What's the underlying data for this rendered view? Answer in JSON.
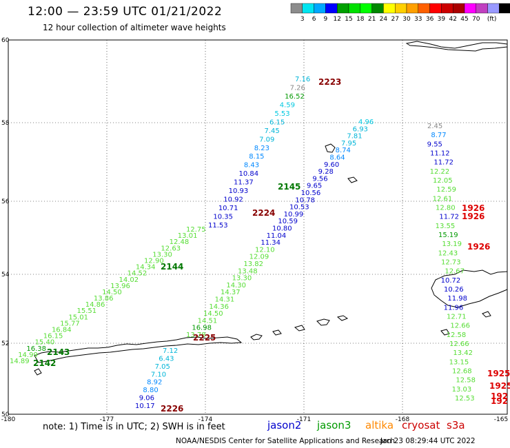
{
  "title": "12:00 — 23:59 UTC 01/21/2022",
  "subtitle": "12 hour collection of altimeter wave heights",
  "colorbar": {
    "colors": [
      "#8c8c8c",
      "#00e5f0",
      "#00a8ff",
      "#0000ff",
      "#00a000",
      "#00e000",
      "#00ff00",
      "#008800",
      "#ffff00",
      "#ffd000",
      "#ffa000",
      "#ff6000",
      "#ff0000",
      "#cc0000",
      "#aa0000",
      "#ff00ff",
      "#c040c0",
      "#9999ff",
      "#000000"
    ],
    "labels": [
      "3",
      "6",
      "9",
      "12",
      "15",
      "18",
      "21",
      "24",
      "27",
      "30",
      "33",
      "36",
      "39",
      "42",
      "45",
      "70",
      "(ft)"
    ]
  },
  "axes": {
    "lat_labels": [
      "60",
      "58",
      "56",
      "54",
      "52",
      "50"
    ],
    "lon_labels": [
      "-180",
      "-177",
      "-174",
      "-171",
      "-168",
      "-165"
    ]
  },
  "colors": {
    "jason2": "#0000cc",
    "jason3": "#009900",
    "altika": "#ff8800",
    "cryosat": "#cc0000",
    "s3a": "#cc0000",
    "band_cyan": "#00b5d8",
    "band_light_green": "#55dd33",
    "band_dark_blue": "#000099",
    "band_light_blue": "#0088ff",
    "band_gray": "#888888"
  },
  "tracks": [
    {
      "time": "2223",
      "color": "#880000",
      "points": [
        {
          "v": "7.16",
          "c": "#00b5d8"
        },
        {
          "v": "7.26",
          "c": "#888888"
        },
        {
          "v": "16.52",
          "c": "#009900"
        },
        {
          "v": "4.59",
          "c": "#00c8e0"
        },
        {
          "v": "5.53",
          "c": "#00c8e0"
        },
        {
          "v": "6.15",
          "c": "#00b5d8"
        },
        {
          "v": "7.45",
          "c": "#00b5d8"
        },
        {
          "v": "7.09",
          "c": "#00b5d8"
        },
        {
          "v": "8.23",
          "c": "#0088ff"
        },
        {
          "v": "8.15",
          "c": "#0088ff"
        },
        {
          "v": "8.43",
          "c": "#0088ff"
        },
        {
          "v": "10.84",
          "c": "#0000cc"
        },
        {
          "v": "11.37",
          "c": "#0000cc"
        },
        {
          "v": "10.93",
          "c": "#0000cc"
        },
        {
          "v": "10.92",
          "c": "#0000cc"
        },
        {
          "v": "10.71",
          "c": "#0000cc"
        },
        {
          "v": "10.35",
          "c": "#0000cc"
        },
        {
          "v": "11.53",
          "c": "#0000cc"
        }
      ]
    },
    {
      "time": "2145",
      "color": "#007700",
      "points": [
        {
          "v": "4.96",
          "c": "#00c8e0"
        },
        {
          "v": "6.93",
          "c": "#00b5d8"
        },
        {
          "v": "7.81",
          "c": "#00b5d8"
        },
        {
          "v": "7.95",
          "c": "#00b5d8"
        },
        {
          "v": "8.74",
          "c": "#0088ff"
        },
        {
          "v": "8.64",
          "c": "#0088ff"
        },
        {
          "v": "9.60",
          "c": "#0000cc"
        },
        {
          "v": "9.28",
          "c": "#0000cc"
        },
        {
          "v": "9.56",
          "c": "#0000cc"
        },
        {
          "v": "9.65",
          "c": "#0000cc"
        },
        {
          "v": "10.56",
          "c": "#0000cc"
        },
        {
          "v": "10.78",
          "c": "#0000cc"
        },
        {
          "v": "10.53",
          "c": "#0000cc"
        },
        {
          "v": "10.99",
          "c": "#0000cc"
        },
        {
          "v": "10.59",
          "c": "#0000cc"
        },
        {
          "v": "10.80",
          "c": "#0000cc"
        },
        {
          "v": "11.04",
          "c": "#0000cc"
        },
        {
          "v": "11.34",
          "c": "#0000cc"
        },
        {
          "v": "12.10",
          "c": "#55dd33"
        },
        {
          "v": "12.09",
          "c": "#55dd33"
        },
        {
          "v": "13.82",
          "c": "#55dd33"
        },
        {
          "v": "13.48",
          "c": "#55dd33"
        },
        {
          "v": "13.30",
          "c": "#55dd33"
        },
        {
          "v": "14.30",
          "c": "#55dd33"
        },
        {
          "v": "14.37",
          "c": "#55dd33"
        },
        {
          "v": "14.31",
          "c": "#55dd33"
        },
        {
          "v": "14.36",
          "c": "#55dd33"
        },
        {
          "v": "14.50",
          "c": "#55dd33"
        },
        {
          "v": "14.51",
          "c": "#55dd33"
        },
        {
          "v": "16.98",
          "c": "#009900"
        },
        {
          "v": "13.78",
          "c": "#55dd33"
        }
      ]
    },
    {
      "time": "2224",
      "color": "#880000"
    },
    {
      "time": "2144",
      "color": "#007700",
      "points": [
        {
          "v": "12.75",
          "c": "#55dd33"
        },
        {
          "v": "13.01",
          "c": "#55dd33"
        },
        {
          "v": "12.48",
          "c": "#55dd33"
        },
        {
          "v": "12.63",
          "c": "#55dd33"
        },
        {
          "v": "13.30",
          "c": "#55dd33"
        },
        {
          "v": "12.90",
          "c": "#55dd33"
        },
        {
          "v": "14.34",
          "c": "#55dd33"
        },
        {
          "v": "14.52",
          "c": "#55dd33"
        },
        {
          "v": "14.02",
          "c": "#55dd33"
        },
        {
          "v": "13.96",
          "c": "#55dd33"
        },
        {
          "v": "14.50",
          "c": "#55dd33"
        },
        {
          "v": "13.86",
          "c": "#55dd33"
        },
        {
          "v": "14.86",
          "c": "#55dd33"
        },
        {
          "v": "15.51",
          "c": "#55dd33"
        },
        {
          "v": "15.01",
          "c": "#55dd33"
        },
        {
          "v": "15.77",
          "c": "#55dd33"
        },
        {
          "v": "16.84",
          "c": "#55dd33"
        },
        {
          "v": "16.15",
          "c": "#55dd33"
        },
        {
          "v": "15.40",
          "c": "#55dd33"
        },
        {
          "v": "16.38",
          "c": "#009900"
        },
        {
          "v": "14.99",
          "c": "#55dd33"
        },
        {
          "v": "14.89",
          "c": "#55dd33"
        }
      ]
    },
    {
      "time": "2143",
      "color": "#007700"
    },
    {
      "time": "2142",
      "color": "#007700"
    },
    {
      "time": "2225",
      "color": "#880000",
      "points": [
        {
          "v": "7.12",
          "c": "#00b5d8"
        },
        {
          "v": "6.43",
          "c": "#00b5d8"
        },
        {
          "v": "7.05",
          "c": "#00b5d8"
        },
        {
          "v": "7.10",
          "c": "#00b5d8"
        },
        {
          "v": "8.92",
          "c": "#0088ff"
        },
        {
          "v": "8.80",
          "c": "#0088ff"
        },
        {
          "v": "9.06",
          "c": "#0000cc"
        },
        {
          "v": "10.17",
          "c": "#0000cc"
        }
      ]
    },
    {
      "time": "2226",
      "color": "#880000"
    },
    {
      "time": "1926",
      "color": "#dd0000",
      "points": [
        {
          "v": "2.45",
          "c": "#888888"
        },
        {
          "v": "8.77",
          "c": "#0088ff"
        },
        {
          "v": "9.55",
          "c": "#0000cc"
        },
        {
          "v": "11.12",
          "c": "#0000cc"
        },
        {
          "v": "11.72",
          "c": "#0000cc"
        },
        {
          "v": "12.22",
          "c": "#55dd33"
        },
        {
          "v": "12.05",
          "c": "#55dd33"
        },
        {
          "v": "12.59",
          "c": "#55dd33"
        },
        {
          "v": "12.61",
          "c": "#55dd33"
        },
        {
          "v": "12.80",
          "c": "#55dd33"
        },
        {
          "v": "11.72",
          "c": "#0000cc"
        },
        {
          "v": "13.55",
          "c": "#55dd33"
        },
        {
          "v": "15.19",
          "c": "#009900"
        },
        {
          "v": "13.19",
          "c": "#55dd33"
        },
        {
          "v": "12.43",
          "c": "#55dd33"
        },
        {
          "v": "12.73",
          "c": "#55dd33"
        },
        {
          "v": "12.67",
          "c": "#55dd33"
        },
        {
          "v": "10.72",
          "c": "#0000cc"
        },
        {
          "v": "10.26",
          "c": "#0000cc"
        },
        {
          "v": "11.98",
          "c": "#0000cc"
        },
        {
          "v": "11.96",
          "c": "#0000cc"
        },
        {
          "v": "12.71",
          "c": "#55dd33"
        },
        {
          "v": "12.66",
          "c": "#55dd33"
        },
        {
          "v": "12.58",
          "c": "#55dd33"
        },
        {
          "v": "12.66",
          "c": "#55dd33"
        },
        {
          "v": "13.42",
          "c": "#55dd33"
        },
        {
          "v": "13.15",
          "c": "#55dd33"
        },
        {
          "v": "12.68",
          "c": "#55dd33"
        },
        {
          "v": "12.58",
          "c": "#55dd33"
        },
        {
          "v": "13.03",
          "c": "#55dd33"
        },
        {
          "v": "12.53",
          "c": "#55dd33"
        }
      ]
    },
    {
      "time": "1926",
      "color": "#dd0000"
    },
    {
      "time": "1926",
      "color": "#dd0000"
    },
    {
      "time": "1925",
      "color": "#dd0000"
    },
    {
      "time": "1925",
      "color": "#dd0000"
    },
    {
      "time": "192",
      "color": "#dd0000"
    },
    {
      "time": "192",
      "color": "#dd0000"
    }
  ],
  "note": "note:  1) Time is in UTC;  2) SWH is in feet",
  "legend": [
    {
      "label": "jason2",
      "color": "#0000cc"
    },
    {
      "label": "jason3",
      "color": "#009900"
    },
    {
      "label": "altika",
      "color": "#ff8800"
    },
    {
      "label": "cryosat",
      "color": "#cc0000"
    },
    {
      "label": "s3a",
      "color": "#cc0000"
    }
  ],
  "credit": "NOAA/NESDIS Center for Satellite Applications and Research",
  "timestamp": "Jan 23 08:29:44 UTC 2022"
}
